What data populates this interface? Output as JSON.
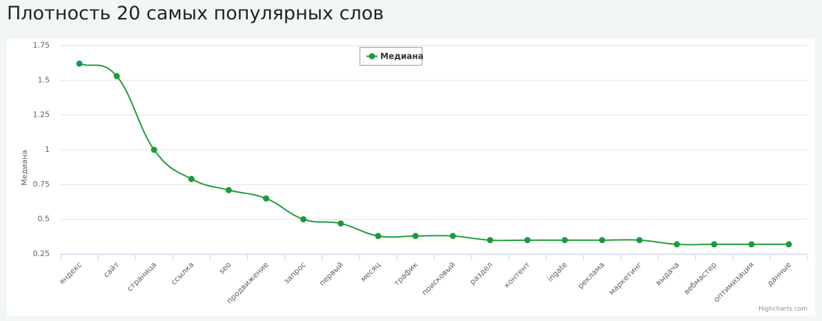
{
  "page_title": "Плотность 20 самых популярных слов",
  "chart_data": {
    "type": "line",
    "y_axis_title": "Медиана",
    "categories": [
      "яндекс",
      "сайт",
      "страница",
      "ссылка",
      "seo",
      "продвижение",
      "запрос",
      "первый",
      "месяц",
      "трафик",
      "поисковый",
      "раздел",
      "контент",
      "ingate",
      "реклама",
      "маркетинг",
      "выдача",
      "вебмастер",
      "оптимизация",
      "данные"
    ],
    "series": [
      {
        "name": "Медиана",
        "color": "#1e9a3c",
        "values": [
          1.62,
          1.53,
          1.0,
          0.79,
          0.71,
          0.65,
          0.5,
          0.47,
          0.38,
          0.38,
          0.38,
          0.35,
          0.35,
          0.35,
          0.35,
          0.35,
          0.32,
          0.32,
          0.32,
          0.32
        ]
      }
    ],
    "ylim": [
      0.25,
      1.75
    ],
    "yticks": [
      0.25,
      0.5,
      0.75,
      1,
      1.25,
      1.5,
      1.75
    ],
    "grid": true,
    "smooth": true,
    "legend": "top",
    "credits": "Highcharts.com"
  }
}
